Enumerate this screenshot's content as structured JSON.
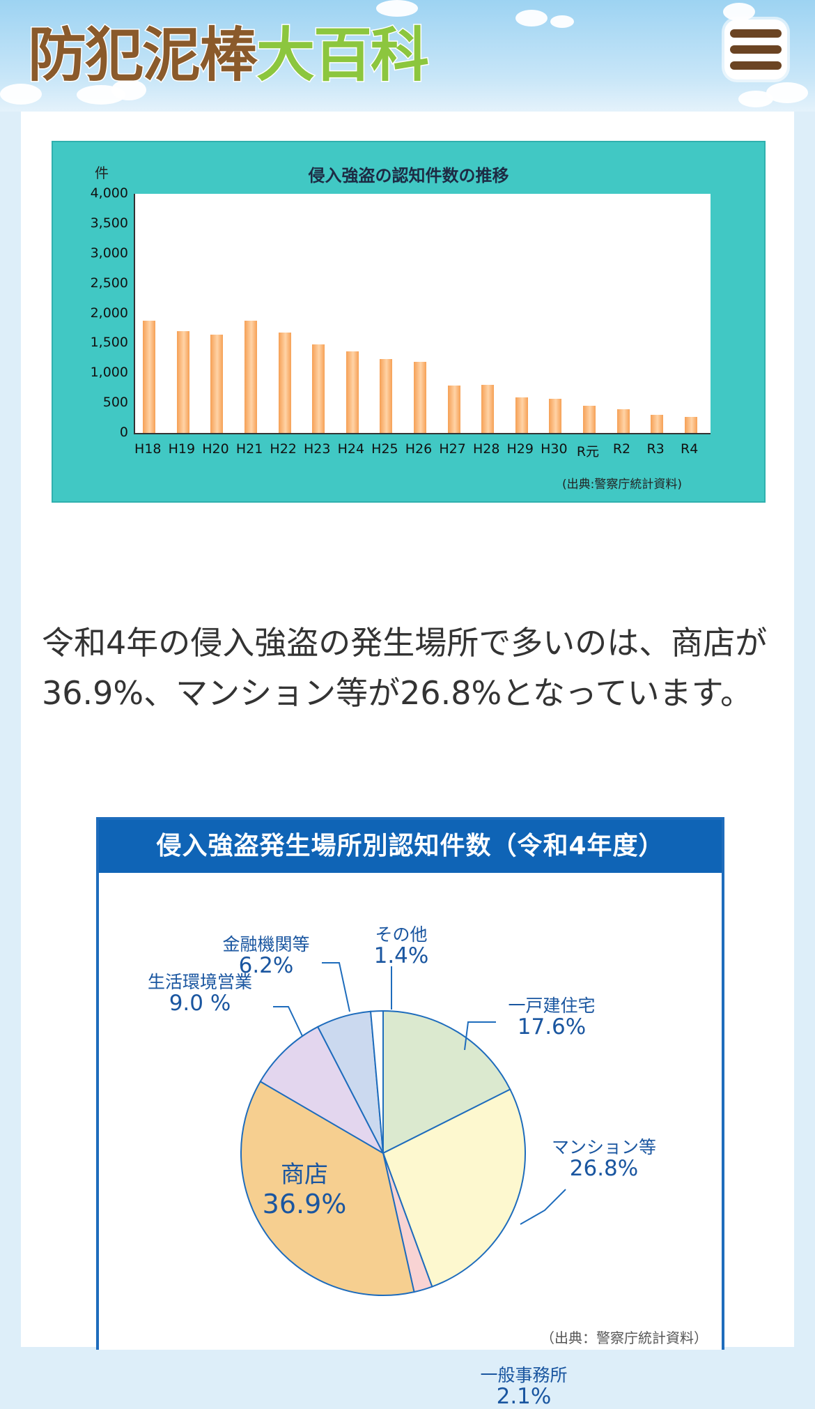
{
  "header": {
    "logo_part1": "防犯泥棒",
    "logo_part2": "大百科",
    "menu_icon": "hamburger-menu-icon",
    "colors": {
      "logo_brown": "#8a5a2b",
      "logo_green": "#8cc63e",
      "sky": "#9dd3f2"
    }
  },
  "bar_chart": {
    "title": "侵入強盗の認知件数の推移",
    "unit": "件",
    "source": "(出典:警察庁統計資料)"
  },
  "chart_data": [
    {
      "type": "bar",
      "title": "侵入強盗の認知件数の推移",
      "ylabel": "件",
      "ylim": [
        0,
        4000
      ],
      "yticks": [
        "4,000",
        "3,500",
        "3,000",
        "2,500",
        "2,000",
        "1,500",
        "1,000",
        "500",
        "0"
      ],
      "categories": [
        "H18",
        "H19",
        "H20",
        "H21",
        "H22",
        "H23",
        "H24",
        "H25",
        "H26",
        "H27",
        "H28",
        "H29",
        "H30",
        "R元",
        "R2",
        "R3",
        "R4"
      ],
      "values": [
        1880,
        1700,
        1640,
        1880,
        1680,
        1480,
        1370,
        1240,
        1190,
        790,
        810,
        590,
        570,
        450,
        400,
        300,
        270
      ],
      "grid": false,
      "bar_color": "#f6a055",
      "background": "#41c8c4"
    },
    {
      "type": "pie",
      "title": "侵入強盗発生場所別認知件数（令和4年度）",
      "slices": [
        {
          "label": "一戸建住宅",
          "value": 17.6,
          "display": "17.6%",
          "color": "#dbe9cf"
        },
        {
          "label": "マンション等",
          "value": 26.8,
          "display": "26.8%",
          "color": "#fdf8cf"
        },
        {
          "label": "一般事務所",
          "value": 2.1,
          "display": "2.1%",
          "color": "#f8d3d3"
        },
        {
          "label": "商店",
          "value": 36.9,
          "display": "36.9%",
          "color": "#f6cf90"
        },
        {
          "label": "生活環境営業",
          "value": 9.0,
          "display": "9.0 %",
          "color": "#e3d6ee"
        },
        {
          "label": "金融機関等",
          "value": 6.2,
          "display": "6.2%",
          "color": "#cbd9ef"
        },
        {
          "label": "その他",
          "value": 1.4,
          "display": "1.4%",
          "color": "#ffffff"
        }
      ],
      "source": "（出典：警察庁統計資料）"
    }
  ],
  "paragraph": "令和4年の侵入強盗の発生場所で多いのは、商店が36.9%、マンション等が26.8%となっています。"
}
